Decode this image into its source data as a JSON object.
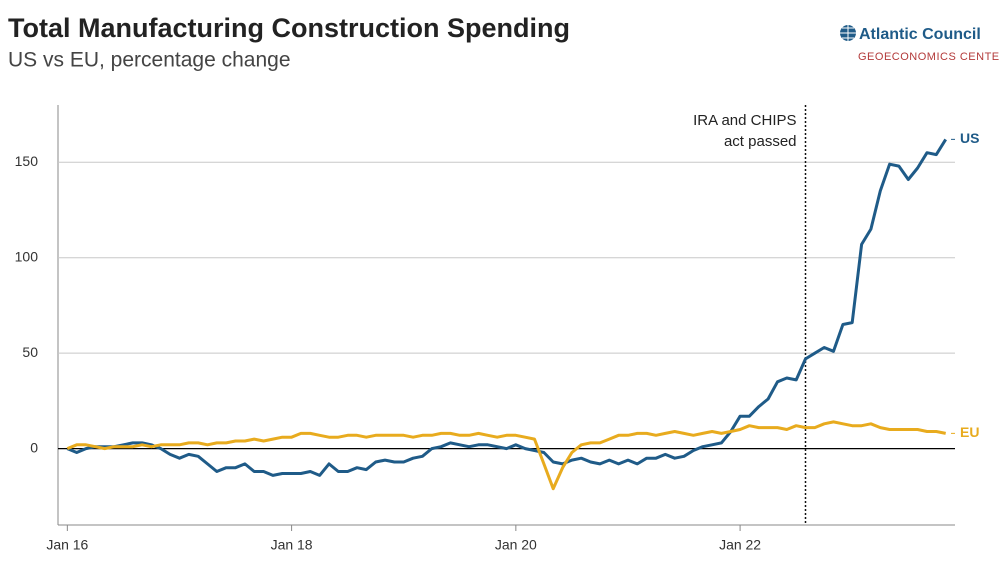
{
  "chart_data": {
    "type": "line",
    "title": "Total Manufacturing Construction Spending",
    "subtitle": "US vs EU, percentage change",
    "brand": {
      "name": "Atlantic Council",
      "unit": "GEOECONOMICS CENTER"
    },
    "annotation": {
      "x": "2022-08",
      "text": [
        "IRA and CHIPS",
        "act passed"
      ]
    },
    "x": [
      "2016-01",
      "2016-02",
      "2016-03",
      "2016-04",
      "2016-05",
      "2016-06",
      "2016-07",
      "2016-08",
      "2016-09",
      "2016-10",
      "2016-11",
      "2016-12",
      "2017-01",
      "2017-02",
      "2017-03",
      "2017-04",
      "2017-05",
      "2017-06",
      "2017-07",
      "2017-08",
      "2017-09",
      "2017-10",
      "2017-11",
      "2017-12",
      "2018-01",
      "2018-02",
      "2018-03",
      "2018-04",
      "2018-05",
      "2018-06",
      "2018-07",
      "2018-08",
      "2018-09",
      "2018-10",
      "2018-11",
      "2018-12",
      "2019-01",
      "2019-02",
      "2019-03",
      "2019-04",
      "2019-05",
      "2019-06",
      "2019-07",
      "2019-08",
      "2019-09",
      "2019-10",
      "2019-11",
      "2019-12",
      "2020-01",
      "2020-02",
      "2020-03",
      "2020-04",
      "2020-05",
      "2020-06",
      "2020-07",
      "2020-08",
      "2020-09",
      "2020-10",
      "2020-11",
      "2020-12",
      "2021-01",
      "2021-02",
      "2021-03",
      "2021-04",
      "2021-05",
      "2021-06",
      "2021-07",
      "2021-08",
      "2021-09",
      "2021-10",
      "2021-11",
      "2021-12",
      "2022-01",
      "2022-02",
      "2022-03",
      "2022-04",
      "2022-05",
      "2022-06",
      "2022-07",
      "2022-08",
      "2022-09",
      "2022-10",
      "2022-11",
      "2022-12",
      "2023-01",
      "2023-02",
      "2023-03",
      "2023-04",
      "2023-05",
      "2023-06",
      "2023-07",
      "2023-08",
      "2023-09",
      "2023-10",
      "2023-11"
    ],
    "series": [
      {
        "name": "US",
        "color": "#1f5b88",
        "values": [
          0,
          -2,
          0,
          1,
          1,
          1,
          2,
          3,
          3,
          2,
          0,
          -3,
          -5,
          -3,
          -4,
          -8,
          -12,
          -10,
          -10,
          -8,
          -12,
          -12,
          -14,
          -13,
          -13,
          -13,
          -12,
          -14,
          -8,
          -12,
          -12,
          -10,
          -11,
          -7,
          -6,
          -7,
          -7,
          -5,
          -4,
          0,
          1,
          3,
          2,
          1,
          2,
          2,
          1,
          0,
          2,
          0,
          -1,
          -2,
          -7,
          -8,
          -6,
          -5,
          -7,
          -8,
          -6,
          -8,
          -6,
          -8,
          -5,
          -5,
          -3,
          -5,
          -4,
          -1,
          1,
          2,
          3,
          9,
          17,
          17,
          22,
          26,
          35,
          37,
          36,
          47,
          50,
          53,
          51,
          65,
          66,
          107,
          115,
          135,
          149,
          148,
          141,
          147,
          155,
          154,
          162
        ]
      },
      {
        "name": "EU",
        "color": "#e8ab1e",
        "values": [
          0,
          2,
          2,
          1,
          0,
          1,
          1,
          1,
          2,
          1,
          2,
          2,
          2,
          3,
          3,
          2,
          3,
          3,
          4,
          4,
          5,
          4,
          5,
          6,
          6,
          8,
          8,
          7,
          6,
          6,
          7,
          7,
          6,
          7,
          7,
          7,
          7,
          6,
          7,
          7,
          8,
          8,
          7,
          7,
          8,
          7,
          6,
          7,
          7,
          6,
          5,
          -8,
          -21,
          -10,
          -2,
          2,
          3,
          3,
          5,
          7,
          7,
          8,
          8,
          7,
          8,
          9,
          8,
          7,
          8,
          9,
          8,
          9,
          10,
          12,
          11,
          11,
          11,
          10,
          12,
          11,
          11,
          13,
          14,
          13,
          12,
          12,
          13,
          11,
          10,
          10,
          10,
          10,
          9,
          9,
          8
        ]
      }
    ],
    "xlim": [
      "2015-12",
      "2023-12"
    ],
    "xticks": [
      {
        "value": "2016-01",
        "label": "Jan 16"
      },
      {
        "value": "2018-01",
        "label": "Jan 18"
      },
      {
        "value": "2020-01",
        "label": "Jan 20"
      },
      {
        "value": "2022-01",
        "label": "Jan 22"
      }
    ],
    "ylim": [
      -40,
      180
    ],
    "yticks": [
      0,
      50,
      100,
      150
    ],
    "grid": true
  }
}
